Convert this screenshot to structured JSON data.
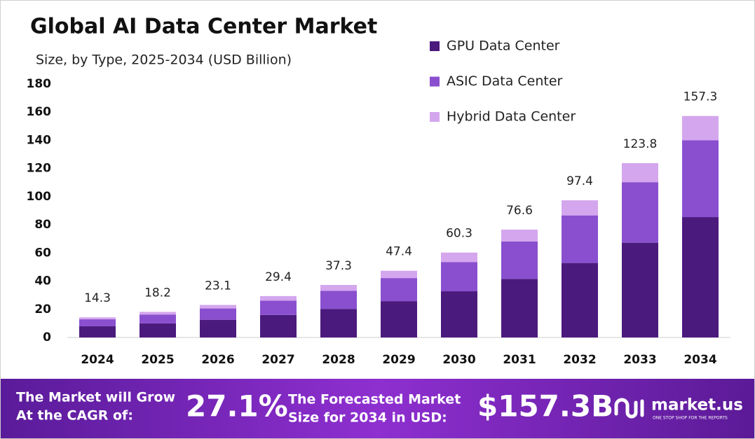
{
  "chart_data": {
    "type": "stacked_bar",
    "title": "Global AI Data Center Market",
    "subtitle": "Size, by Type, 2025-2034 (USD Billion)",
    "categories": [
      "2024",
      "2025",
      "2026",
      "2027",
      "2028",
      "2029",
      "2030",
      "2031",
      "2032",
      "2033",
      "2034"
    ],
    "series": [
      {
        "name": "GPU Data Center",
        "color": "#4b1a7d",
        "values": [
          8,
          10,
          12.6,
          16,
          20.3,
          25.8,
          32.8,
          41.6,
          52.9,
          67.3,
          85.5
        ]
      },
      {
        "name": "ASIC Data Center",
        "color": "#8a4fcf",
        "values": [
          4.9,
          6.3,
          8,
          10.2,
          12.9,
          16.4,
          20.8,
          26.6,
          33.8,
          43,
          54.6
        ]
      },
      {
        "name": "Hybrid Data Center",
        "color": "#d4a6ee",
        "values": [
          1.4,
          1.9,
          2.5,
          3.2,
          4.1,
          5.2,
          6.7,
          8.4,
          10.7,
          13.5,
          17.2
        ]
      }
    ],
    "totals": [
      14.3,
      18.2,
      23.1,
      29.4,
      37.3,
      47.4,
      60.3,
      76.6,
      97.4,
      123.8,
      157.3
    ],
    "ylim": [
      0,
      180
    ],
    "yticks": [
      0,
      20,
      40,
      60,
      80,
      100,
      120,
      140,
      160,
      180
    ],
    "grid": false,
    "legend": "top-right"
  },
  "footer": {
    "cagr_text": [
      "The Market will Grow",
      "At the CAGR of:"
    ],
    "cagr": "27.1%",
    "forecast_text": [
      "The Forecasted Market",
      "Size for 2034 in USD:"
    ],
    "forecast": "$157.3B",
    "brand": "market.us",
    "tagline": "ONE STOP SHOP FOR THE REPORTS"
  }
}
